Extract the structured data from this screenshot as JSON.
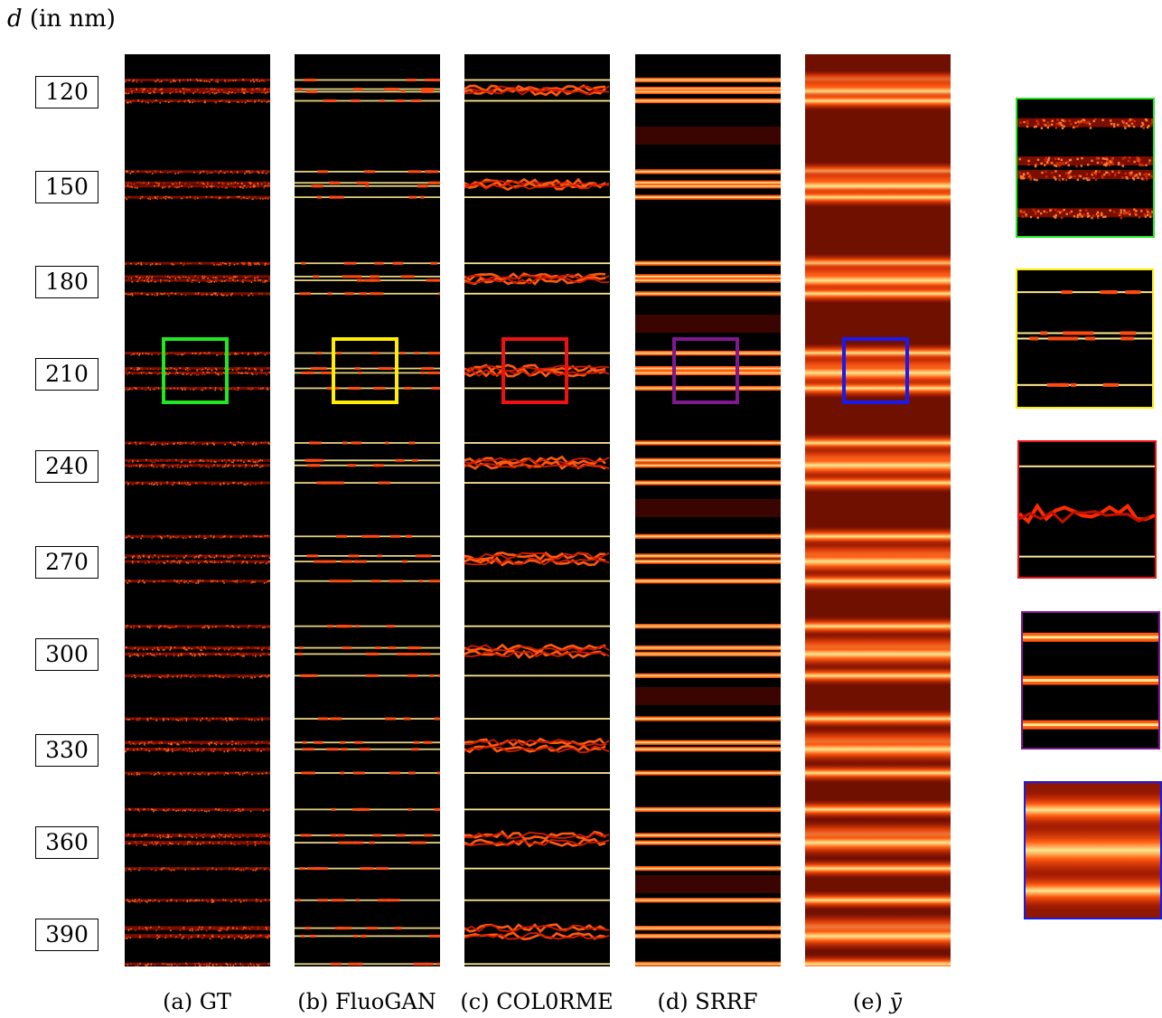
{
  "axis_title": {
    "symbol": "d",
    "unit": "(in nm)"
  },
  "distances": [
    "120",
    "150",
    "180",
    "210",
    "240",
    "270",
    "300",
    "330",
    "360",
    "390"
  ],
  "panels": [
    {
      "id": "gt",
      "caption_prefix": "(a)",
      "caption_name": "GT",
      "roi_color": "#22e622",
      "style": "speckle"
    },
    {
      "id": "fluogan",
      "caption_prefix": "(b)",
      "caption_name": "FluoGAN",
      "roi_color": "#ffee00",
      "style": "thin"
    },
    {
      "id": "colorme",
      "caption_prefix": "(c)",
      "caption_name": "COL0RME",
      "roi_color": "#ee1111",
      "style": "wavy"
    },
    {
      "id": "srrf",
      "caption_prefix": "(d)",
      "caption_name": "SRRF",
      "roi_color": "#801890",
      "style": "medium"
    },
    {
      "id": "ybar",
      "caption_prefix": "(e)",
      "caption_name": "ȳ",
      "roi_color": "#1a1aee",
      "style": "blur"
    }
  ],
  "colors": {
    "background": "#000000",
    "hot_dark": "#b01000",
    "hot_mid": "#ff5a10",
    "hot_light": "#ffe890"
  }
}
